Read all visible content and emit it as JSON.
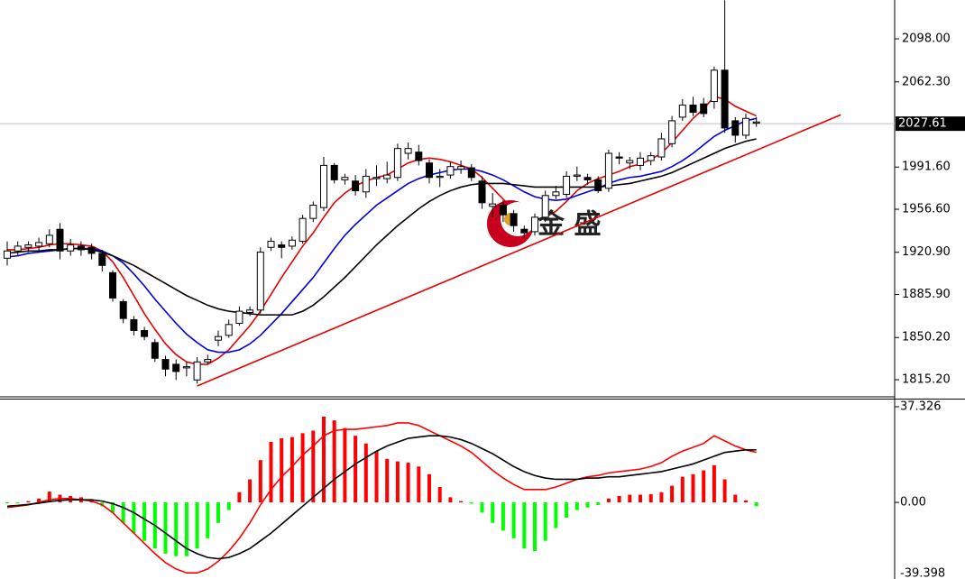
{
  "chart_data": [
    {
      "type": "candlestick",
      "ylim": [
        1801.0,
        2130.2
      ],
      "yticks": [
        {
          "value": 1815.2,
          "label": "1815.20"
        },
        {
          "value": 1850.2,
          "label": "1850.20"
        },
        {
          "value": 1885.9,
          "label": "1885.90"
        },
        {
          "value": 1920.9,
          "label": "1920.90"
        },
        {
          "value": 1956.6,
          "label": "1956.60"
        },
        {
          "value": 1991.6,
          "label": "1991.60"
        },
        {
          "value": 2062.3,
          "label": "2062.30"
        },
        {
          "value": 2098,
          "label": "2098.00"
        }
      ],
      "last_price": 2027.61,
      "watermark": "金 盛",
      "open": [
        1916,
        1922,
        1925,
        1926,
        1928,
        1940,
        1922,
        1926,
        1925,
        1920,
        1904,
        1880,
        1865,
        1856,
        1846,
        1832,
        1828,
        1825,
        1815,
        1830,
        1848,
        1852,
        1862,
        1871,
        1873,
        1925,
        1927,
        1926,
        1930,
        1949,
        1958,
        1993,
        1981,
        1980,
        1971,
        1982,
        1982,
        1983,
        2003,
        2004,
        1995,
        1983,
        1985,
        1990,
        1991,
        1980,
        1959,
        1960,
        1953,
        1940,
        1938,
        1950,
        1968,
        1969,
        1984,
        1983,
        1981,
        1974,
        2000,
        1995,
        1993,
        1997,
        2000,
        2011,
        2033,
        2043,
        2044,
        2046,
        2072,
        2030,
        2018,
        2028
      ],
      "high": [
        1930,
        1930,
        1930,
        1933,
        1940,
        1945,
        1932,
        1930,
        1928,
        1923,
        1906,
        1882,
        1868,
        1859,
        1849,
        1835,
        1832,
        1830,
        1834,
        1836,
        1856,
        1865,
        1876,
        1876,
        1925,
        1933,
        1930,
        1934,
        1952,
        1963,
        2000,
        1995,
        1986,
        1985,
        1990,
        1993,
        1996,
        2011,
        2012,
        2010,
        1998,
        1990,
        1996,
        1997,
        1994,
        1984,
        1970,
        1964,
        1956,
        1943,
        1953,
        1972,
        1976,
        1988,
        1992,
        1986,
        1984,
        2006,
        2004,
        2000,
        2004,
        2004,
        2020,
        2034,
        2048,
        2050,
        2049,
        2075,
        2130,
        2033,
        2036,
        2033
      ],
      "low": [
        1910,
        1918,
        1921,
        1922,
        1925,
        1915,
        1918,
        1918,
        1915,
        1905,
        1880,
        1862,
        1852,
        1848,
        1830,
        1818,
        1815,
        1818,
        1812,
        1828,
        1843,
        1850,
        1860,
        1868,
        1870,
        1922,
        1916,
        1923,
        1928,
        1946,
        1955,
        1978,
        1977,
        1968,
        1966,
        1976,
        1978,
        1980,
        1998,
        1993,
        1978,
        1975,
        1982,
        1986,
        1980,
        1957,
        1950,
        1946,
        1938,
        1933,
        1935,
        1946,
        1965,
        1966,
        1980,
        1977,
        1970,
        1971,
        1994,
        1990,
        1989,
        1993,
        1997,
        2008,
        2030,
        2034,
        2033,
        2040,
        2020,
        2012,
        2015,
        2025
      ],
      "close": [
        1922,
        1926,
        1927,
        1929,
        1935,
        1922,
        1927,
        1923,
        1920,
        1910,
        1883,
        1866,
        1856,
        1851,
        1833,
        1824,
        1822,
        1826,
        1830,
        1832,
        1851,
        1861,
        1872,
        1873,
        1921,
        1930,
        1925,
        1931,
        1949,
        1960,
        1993,
        1981,
        1983,
        1972,
        1984,
        1983,
        1985,
        2007,
        2007,
        1997,
        1983,
        1984,
        1992,
        1992,
        1983,
        1962,
        1961,
        1952,
        1943,
        1937,
        1950,
        1968,
        1971,
        1984,
        1985,
        1981,
        1972,
        2003,
        1999,
        1997,
        1999,
        2001,
        2015,
        2030,
        2043,
        2037,
        2036,
        2072,
        2024,
        2018,
        2032,
        2029
      ],
      "lines": [
        {
          "color": "#e60000",
          "values": [
            1923,
            1923,
            1924,
            1925,
            1927,
            1928,
            1928,
            1927,
            1926,
            1922,
            1913,
            1900,
            1885,
            1870,
            1857,
            1845,
            1836,
            1830,
            1828,
            1828,
            1833,
            1840,
            1850,
            1860,
            1872,
            1886,
            1900,
            1913,
            1926,
            1937,
            1950,
            1962,
            1970,
            1976,
            1980,
            1983,
            1985,
            1990,
            1995,
            1998,
            1999,
            1998,
            1996,
            1993,
            1990,
            1983,
            1974,
            1965,
            1957,
            1951,
            1948,
            1950,
            1955,
            1963,
            1972,
            1978,
            1982,
            1985,
            1988,
            1992,
            1994,
            1998,
            2003,
            2012,
            2022,
            2032,
            2040,
            2050,
            2048,
            2042,
            2038,
            2034
          ]
        },
        {
          "color": "#0000e0",
          "values": [
            1917,
            1918,
            1920,
            1921,
            1922,
            1923,
            1924,
            1924,
            1924,
            1922,
            1918,
            1912,
            1903,
            1893,
            1882,
            1872,
            1862,
            1853,
            1846,
            1840,
            1838,
            1838,
            1840,
            1845,
            1852,
            1861,
            1870,
            1880,
            1890,
            1900,
            1912,
            1924,
            1935,
            1944,
            1952,
            1960,
            1966,
            1972,
            1978,
            1982,
            1985,
            1987,
            1989,
            1990,
            1990,
            1988,
            1985,
            1981,
            1976,
            1971,
            1967,
            1965,
            1964,
            1965,
            1968,
            1971,
            1974,
            1978,
            1981,
            1983,
            1984,
            1986,
            1988,
            1992,
            1997,
            2003,
            2010,
            2017,
            2022,
            2026,
            2030,
            2032
          ]
        },
        {
          "color": "#000000",
          "values": [
            1920,
            1921,
            1922,
            1922,
            1923,
            1923,
            1924,
            1924,
            1923,
            1921,
            1918,
            1914,
            1910,
            1905,
            1900,
            1895,
            1890,
            1885,
            1881,
            1877,
            1874,
            1872,
            1871,
            1870,
            1869,
            1869,
            1869,
            1869,
            1872,
            1877,
            1884,
            1892,
            1900,
            1909,
            1918,
            1927,
            1935,
            1943,
            1950,
            1957,
            1963,
            1968,
            1972,
            1975,
            1977,
            1978,
            1978,
            1978,
            1977,
            1976,
            1975,
            1975,
            1975,
            1975,
            1975,
            1975,
            1975,
            1976,
            1977,
            1978,
            1980,
            1982,
            1984,
            1987,
            1991,
            1995,
            1999,
            2003,
            2007,
            2010,
            2013,
            2015
          ]
        }
      ],
      "trendline": {
        "color": "#e60000",
        "x": [
          18,
          79
        ],
        "y": [
          1810,
          2035
        ]
      }
    },
    {
      "type": "macd",
      "ylim": [
        -39.398,
        37.326
      ],
      "yticks": [
        37.326,
        {
          "value": 0,
          "label": "0.00"
        },
        -39.398
      ],
      "pos_color": "#ff0000",
      "neg_color": "#00ff00",
      "histogram": [
        -0.4,
        -0.4,
        0.5,
        1.5,
        4.2,
        3,
        2.5,
        2,
        1,
        -1.5,
        -4,
        -8,
        -12,
        -15,
        -18,
        -20,
        -21,
        -21,
        -18,
        -14,
        -8,
        -3,
        4,
        9,
        16.5,
        23.6,
        25,
        25.5,
        27,
        28,
        33.5,
        32,
        29,
        26,
        23,
        20,
        17,
        16,
        15.5,
        14,
        11,
        6,
        2,
        0.5,
        -0.5,
        -4,
        -8,
        -11,
        -14,
        -18,
        -19,
        -15,
        -10,
        -6,
        -3,
        -2,
        -1,
        1.5,
        2.5,
        3,
        3,
        3.2,
        4,
        6.5,
        10,
        11,
        12.5,
        14.5,
        9,
        3,
        0.8,
        -1.5
      ],
      "lines": [
        {
          "color": "#ff0000",
          "values": [
            -2,
            -1.5,
            -1,
            0,
            1,
            1.5,
            1.5,
            1,
            0.5,
            -1,
            -4,
            -8,
            -12,
            -16,
            -20,
            -23.5,
            -26,
            -27.5,
            -27.5,
            -26,
            -23,
            -19,
            -14,
            -8,
            -1,
            5,
            10,
            14,
            18.5,
            22,
            26,
            28,
            28.5,
            28.5,
            29,
            29.5,
            30,
            31,
            31,
            30,
            28,
            26,
            24,
            22,
            19.5,
            16,
            12.5,
            9.5,
            7,
            5,
            5,
            5,
            6,
            7.5,
            9,
            10,
            10.5,
            11.5,
            12,
            12.5,
            13,
            14,
            15.5,
            18,
            20,
            21.5,
            23,
            26,
            24,
            22,
            20.5,
            19.5
          ]
        },
        {
          "color": "#000000",
          "values": [
            -1.5,
            -1.2,
            -0.8,
            -0.3,
            0.3,
            0.8,
            1,
            1,
            1,
            0.5,
            -0.5,
            -2,
            -4,
            -6.5,
            -9,
            -12,
            -15,
            -18,
            -20,
            -21.5,
            -22,
            -21.5,
            -20,
            -18,
            -15,
            -12,
            -8.5,
            -5,
            -1.5,
            2,
            5.5,
            9,
            12,
            15,
            17.5,
            20,
            22,
            23.5,
            25,
            25.5,
            26,
            26,
            25.5,
            24.5,
            23,
            21,
            19,
            16.5,
            14,
            12,
            10.5,
            9.5,
            9,
            9,
            9,
            9.5,
            9.5,
            10,
            10,
            10.5,
            11,
            11.5,
            12,
            13,
            14,
            15,
            16.5,
            18,
            19.5,
            20,
            20.5,
            20.5
          ]
        }
      ]
    }
  ]
}
